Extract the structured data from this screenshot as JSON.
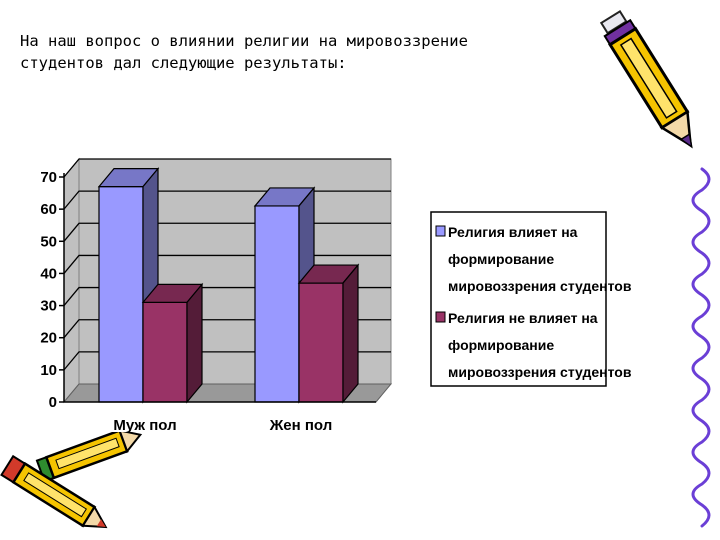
{
  "intro": {
    "line1": "На наш вопрос о влиянии религии на мировоззрение",
    "line2": "студентов дал следующие результаты:"
  },
  "colors": {
    "series1": "#9999ff",
    "series2": "#993366",
    "wall": "#c0c0c0",
    "floor": "#999999",
    "wavy_line": "#6b3fd6"
  },
  "decorations": {
    "top_right": "pencil-icon",
    "bottom_left": "pencils-icon",
    "right_edge": "wavy-line"
  },
  "chart_data": {
    "type": "bar",
    "style": "3d-clustered-column",
    "categories": [
      "Муж пол",
      "Жен пол"
    ],
    "series": [
      {
        "name_lines": [
          "Религия влияет на",
          "формирование",
          "мировоззрения студентов"
        ],
        "values": [
          67,
          61
        ],
        "color": "#9999ff"
      },
      {
        "name_lines": [
          "Религия не влияет на",
          "формирование",
          "мировоззрения студентов"
        ],
        "values": [
          31,
          37
        ],
        "color": "#993366"
      }
    ],
    "yticks": [
      "0",
      "10",
      "20",
      "30",
      "40",
      "50",
      "60",
      "70"
    ],
    "ylim": [
      0,
      70
    ],
    "grid": true,
    "legend_position": "right"
  }
}
